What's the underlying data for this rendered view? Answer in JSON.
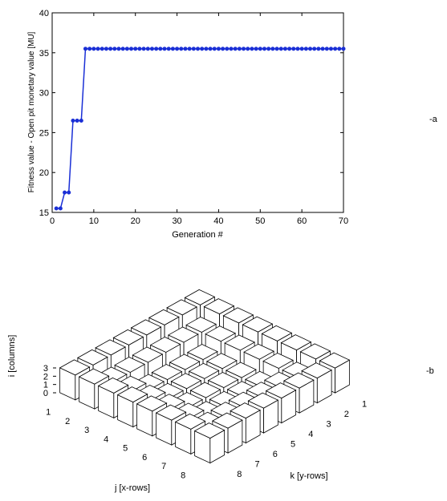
{
  "chart_data": [
    {
      "type": "line",
      "panel_label": "-a",
      "xlabel": "Generation #",
      "ylabel": "Fitness value - Open pit monetary value [MU]",
      "color": "#1a2fd6",
      "x": [
        1,
        2,
        3,
        4,
        5,
        6,
        7,
        8,
        9,
        10,
        11,
        12,
        13,
        14,
        15,
        16,
        17,
        18,
        19,
        20,
        21,
        22,
        23,
        24,
        25,
        26,
        27,
        28,
        29,
        30,
        31,
        32,
        33,
        34,
        35,
        36,
        37,
        38,
        39,
        40,
        41,
        42,
        43,
        44,
        45,
        46,
        47,
        48,
        49,
        50,
        51,
        52,
        53,
        54,
        55,
        56,
        57,
        58,
        59,
        60,
        61,
        62,
        63,
        64,
        65,
        66,
        67,
        68,
        69,
        70
      ],
      "values": [
        15.5,
        15.5,
        17.5,
        17.5,
        26.5,
        26.5,
        26.5,
        35.5,
        35.5,
        35.5,
        35.5,
        35.5,
        35.5,
        35.5,
        35.5,
        35.5,
        35.5,
        35.5,
        35.5,
        35.5,
        35.5,
        35.5,
        35.5,
        35.5,
        35.5,
        35.5,
        35.5,
        35.5,
        35.5,
        35.5,
        35.5,
        35.5,
        35.5,
        35.5,
        35.5,
        35.5,
        35.5,
        35.5,
        35.5,
        35.5,
        35.5,
        35.5,
        35.5,
        35.5,
        35.5,
        35.5,
        35.5,
        35.5,
        35.5,
        35.5,
        35.5,
        35.5,
        35.5,
        35.5,
        35.5,
        35.5,
        35.5,
        35.5,
        35.5,
        35.5,
        35.5,
        35.5,
        35.5,
        35.5,
        35.5,
        35.5,
        35.5,
        35.5,
        35.5,
        35.5
      ],
      "xlim": [
        0,
        70
      ],
      "xticks": [
        0,
        10,
        20,
        30,
        40,
        50,
        60,
        70
      ],
      "ylim": [
        15,
        40
      ],
      "yticks": [
        15,
        20,
        25,
        30,
        35,
        40
      ]
    },
    {
      "type": "bar3d",
      "panel_label": "-b",
      "xlabel": "j [x-rows]",
      "ylabel": "k [y-rows]",
      "zlabel": "i [columns]",
      "xticks": [
        1,
        2,
        3,
        4,
        5,
        6,
        7,
        8
      ],
      "yticks": [
        1,
        2,
        3,
        4,
        5,
        6,
        7,
        8
      ],
      "zlim": [
        0,
        3
      ],
      "zticks": [
        0,
        1,
        2,
        3
      ],
      "values": [
        [
          3,
          3,
          3,
          3,
          3,
          3,
          3,
          3
        ],
        [
          3,
          2,
          2,
          2,
          2,
          2,
          2,
          3
        ],
        [
          3,
          2,
          1,
          1,
          1,
          1,
          2,
          3
        ],
        [
          3,
          2,
          1,
          1,
          1,
          1,
          2,
          3
        ],
        [
          3,
          2,
          1,
          1,
          1,
          1,
          2,
          3
        ],
        [
          3,
          2,
          1,
          1,
          1,
          1,
          2,
          3
        ],
        [
          3,
          2,
          2,
          2,
          2,
          2,
          2,
          3
        ],
        [
          3,
          3,
          3,
          3,
          3,
          3,
          3,
          3
        ]
      ]
    }
  ]
}
